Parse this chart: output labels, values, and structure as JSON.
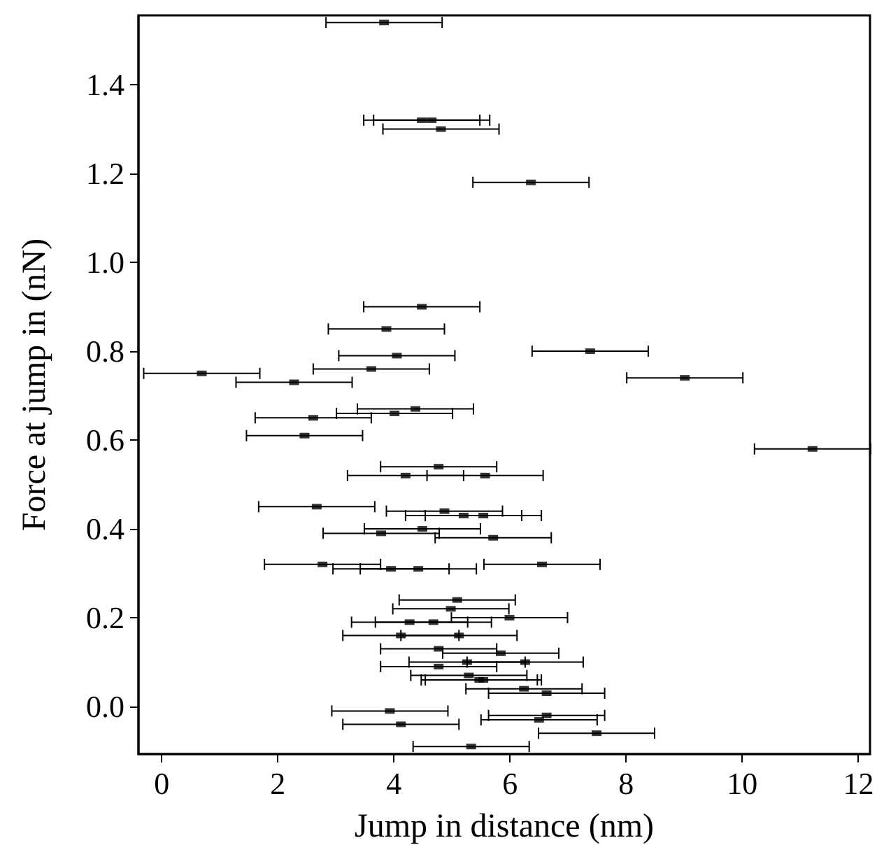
{
  "chart_data": {
    "type": "scatter",
    "xlabel": "Jump in distance (nm)",
    "ylabel": "Force at jump in (nN)",
    "x": [
      3.83,
      4.48,
      4.65,
      4.81,
      6.36,
      4.48,
      3.87,
      4.05,
      7.38,
      3.61,
      0.69,
      9.01,
      2.28,
      4.37,
      2.61,
      4.01,
      2.46,
      11.21,
      4.77,
      4.2,
      5.57,
      2.67,
      4.87,
      5.2,
      5.54,
      4.49,
      3.78,
      5.71,
      2.77,
      4.42,
      3.95,
      6.55,
      5.09,
      4.98,
      4.27,
      4.68,
      5.99,
      4.12,
      5.12,
      4.77,
      5.84,
      5.26,
      6.26,
      4.77,
      5.29,
      5.54,
      5.47,
      6.24,
      6.63,
      3.93,
      6.63,
      6.5,
      4.12,
      7.49,
      5.33
    ],
    "values": [
      1.54,
      1.32,
      1.32,
      1.3,
      1.18,
      0.9,
      0.85,
      0.79,
      0.8,
      0.76,
      0.75,
      0.74,
      0.73,
      0.67,
      0.65,
      0.66,
      0.61,
      0.58,
      0.54,
      0.52,
      0.52,
      0.45,
      0.44,
      0.43,
      0.43,
      0.4,
      0.39,
      0.38,
      0.32,
      0.31,
      0.31,
      0.32,
      0.24,
      0.22,
      0.19,
      0.19,
      0.2,
      0.16,
      0.16,
      0.13,
      0.12,
      0.1,
      0.1,
      0.09,
      0.07,
      0.06,
      0.06,
      0.04,
      0.03,
      -0.01,
      -0.02,
      -0.03,
      -0.04,
      -0.06,
      -0.09
    ],
    "xerrors": [
      1,
      1,
      1,
      1,
      1,
      1,
      1,
      1,
      1,
      1,
      1,
      1,
      1,
      1,
      1,
      1,
      1,
      1,
      1,
      1,
      1,
      1,
      1,
      1,
      1,
      1,
      1,
      1,
      1,
      1,
      1,
      1,
      1,
      1,
      1,
      1,
      1,
      1,
      1,
      1,
      1,
      1,
      1,
      1,
      1,
      1,
      1,
      1,
      1,
      1,
      1,
      1,
      1,
      1,
      1
    ],
    "color": "#000000",
    "marker": "square",
    "xlim": [
      -0.4,
      12.2
    ],
    "ylim": [
      -0.107,
      1.556
    ],
    "xticks": [
      0,
      2,
      4,
      6,
      8,
      10,
      12
    ],
    "yticks": [
      {
        "value": 0,
        "label": "0.0"
      },
      {
        "value": 0.2,
        "label": "0.2"
      },
      {
        "value": 0.4,
        "label": "0.4"
      },
      {
        "value": 0.6,
        "label": "0.6"
      },
      {
        "value": 0.8,
        "label": "0.8"
      },
      {
        "value": 1,
        "label": "1.0"
      },
      {
        "value": 1.2,
        "label": "1.2"
      },
      {
        "value": 1.4,
        "label": "1.4"
      }
    ],
    "grid": false
  }
}
